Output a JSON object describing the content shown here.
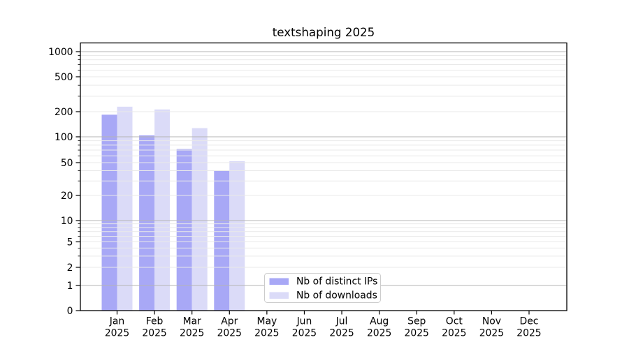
{
  "chart_data": {
    "type": "bar",
    "title": "textshaping 2025",
    "categories": [
      "Jan 2025",
      "Feb 2025",
      "Mar 2025",
      "Apr 2025",
      "May 2025",
      "Jun 2025",
      "Jul 2025",
      "Aug 2025",
      "Sep 2025",
      "Oct 2025",
      "Nov 2025",
      "Dec 2025"
    ],
    "series": [
      {
        "name": "Nb of distinct IPs",
        "color": "#a8a8f6",
        "values": [
          184,
          104,
          72,
          40,
          0,
          0,
          0,
          0,
          0,
          0,
          0,
          0
        ]
      },
      {
        "name": "Nb of downloads",
        "color": "#dbdbf8",
        "values": [
          228,
          212,
          127,
          52,
          0,
          0,
          0,
          0,
          0,
          0,
          0,
          0
        ]
      }
    ],
    "yscale": "symlog",
    "ylim": [
      0,
      1265
    ],
    "y_ticks": [
      0,
      1,
      2,
      5,
      10,
      20,
      50,
      100,
      200,
      500,
      1000
    ],
    "y_tick_labels": [
      "0",
      "1",
      "2",
      "5",
      "10",
      "20",
      "50",
      "100",
      "200",
      "500",
      "1000"
    ],
    "y_major_grid": [
      1,
      10,
      100,
      1000
    ],
    "y_minor_grid_subs": [
      2,
      3,
      4,
      5,
      6,
      7,
      8,
      9
    ],
    "grid": "horizontal, major and minor, drawn above bars",
    "legend": {
      "position": "inside-bottom-left-of-center",
      "entries": [
        "Nb of distinct IPs",
        "Nb of downloads"
      ]
    },
    "colors": {
      "background": "#ffffff",
      "axis": "#000000",
      "major_grid": "#b4b4b4",
      "minor_grid": "#e9e9e9",
      "legend_border": "#cccccc",
      "legend_fill": "#ffffff"
    }
  }
}
